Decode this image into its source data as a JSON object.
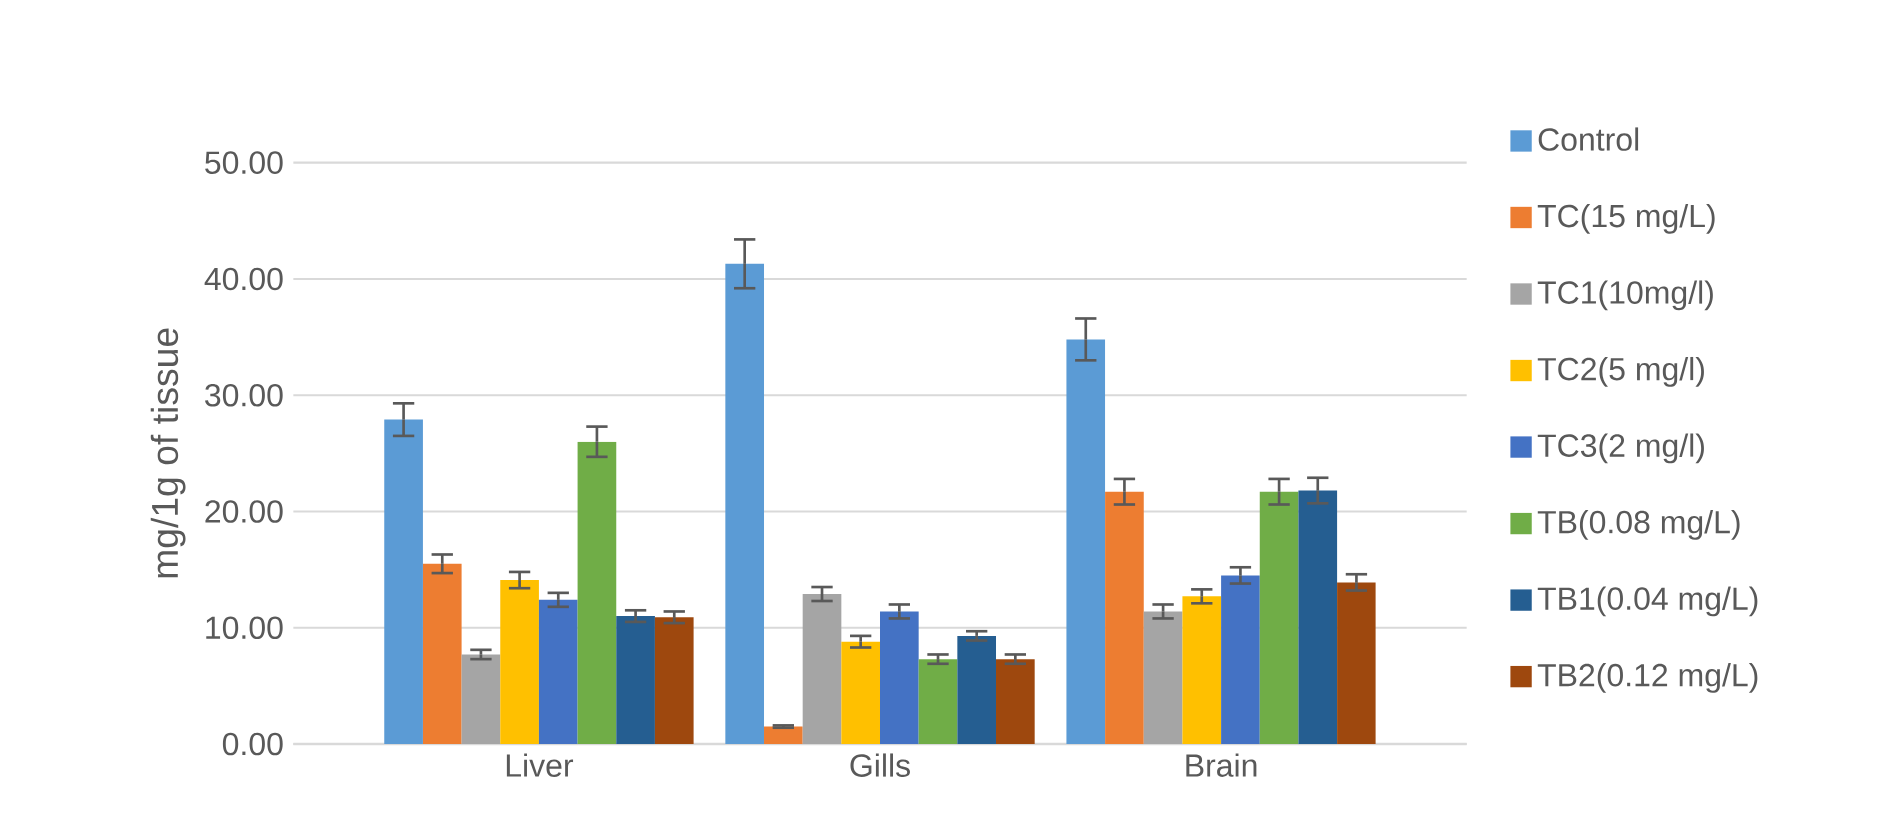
{
  "chart_data": {
    "type": "bar",
    "ylabel": "mg/1g of tissue",
    "categories": [
      "Liver",
      "Gills",
      "Brain"
    ],
    "series": [
      {
        "name": "Control",
        "color": "#5b9bd5",
        "values": [
          27.9,
          41.3,
          34.8
        ],
        "errors": [
          1.4,
          2.1,
          1.8
        ]
      },
      {
        "name": "TC(15 mg/L)",
        "color": "#ed7d31",
        "values": [
          15.5,
          1.5,
          21.7
        ],
        "errors": [
          0.8,
          0.1,
          1.1
        ]
      },
      {
        "name": "TC1(10mg/l)",
        "color": "#a5a5a5",
        "values": [
          7.7,
          12.9,
          11.4
        ],
        "errors": [
          0.4,
          0.6,
          0.6
        ]
      },
      {
        "name": "TC2(5 mg/l)",
        "color": "#ffc000",
        "values": [
          14.1,
          8.8,
          12.7
        ],
        "errors": [
          0.7,
          0.5,
          0.6
        ]
      },
      {
        "name": "TC3(2 mg/l)",
        "color": "#4472c4",
        "values": [
          12.4,
          11.4,
          14.5
        ],
        "errors": [
          0.6,
          0.6,
          0.7
        ]
      },
      {
        "name": "TB(0.08 mg/L)",
        "color": "#70ad47",
        "values": [
          26.0,
          7.3,
          21.7
        ],
        "errors": [
          1.3,
          0.4,
          1.1
        ]
      },
      {
        "name": "TB1(0.04 mg/L)",
        "color": "#255e91",
        "values": [
          11.0,
          9.3,
          21.8
        ],
        "errors": [
          0.5,
          0.4,
          1.1
        ]
      },
      {
        "name": "TB2(0.12 mg/L)",
        "color": "#9e480e",
        "values": [
          10.9,
          7.3,
          13.9
        ],
        "errors": [
          0.5,
          0.4,
          0.7
        ]
      }
    ],
    "ylim": [
      0,
      50
    ],
    "yticks": [
      {
        "value": 0,
        "label": "0.00"
      },
      {
        "value": 10,
        "label": "10.00"
      },
      {
        "value": 20,
        "label": "20.00"
      },
      {
        "value": 30,
        "label": "30.00"
      },
      {
        "value": 40,
        "label": "40.00"
      },
      {
        "value": 50,
        "label": "50.00"
      }
    ],
    "grid": "y",
    "legend": "right"
  }
}
